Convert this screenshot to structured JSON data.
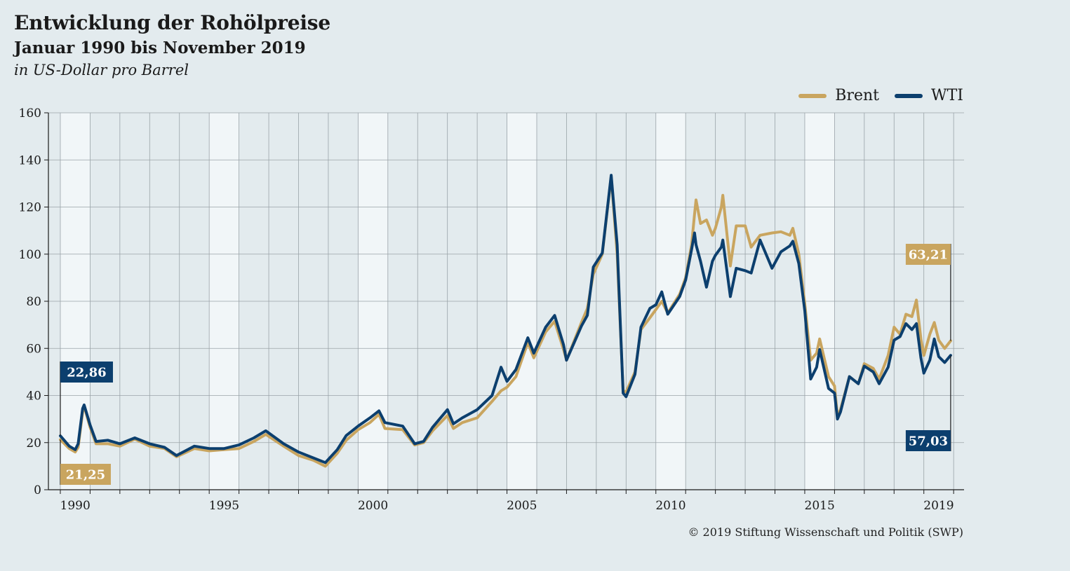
{
  "chart_data": {
    "type": "line",
    "title": "Entwicklung der Rohölpreise",
    "subtitle": "Januar 1990 bis November 2019",
    "unit": "in US-Dollar pro Barrel",
    "source": "© 2019 Stiftung Wissenschaft und Politik (SWP)",
    "legend_position": "top-right",
    "grid": true,
    "ylim": [
      0,
      160
    ],
    "yticks": [
      0,
      20,
      40,
      60,
      80,
      100,
      120,
      140,
      160
    ],
    "xlim": [
      1990.0,
      2019.9
    ],
    "xticks": [
      1990,
      1995,
      2000,
      2005,
      2010,
      2015,
      2019
    ],
    "series": [
      {
        "name": "Brent",
        "color": "#c9a55f",
        "points": [
          [
            1990.0,
            21.25
          ],
          [
            1990.3,
            17.5
          ],
          [
            1990.5,
            16.0
          ],
          [
            1990.6,
            18.0
          ],
          [
            1990.75,
            33.0
          ],
          [
            1990.8,
            35.5
          ],
          [
            1991.0,
            26.5
          ],
          [
            1991.2,
            19.5
          ],
          [
            1991.6,
            19.5
          ],
          [
            1992.0,
            18.5
          ],
          [
            1992.5,
            21.5
          ],
          [
            1993.0,
            18.5
          ],
          [
            1993.5,
            17.5
          ],
          [
            1993.9,
            14.0
          ],
          [
            1994.5,
            17.5
          ],
          [
            1995.0,
            16.5
          ],
          [
            1995.5,
            17.0
          ],
          [
            1996.0,
            17.5
          ],
          [
            1996.5,
            20.5
          ],
          [
            1996.9,
            23.5
          ],
          [
            1997.5,
            18.5
          ],
          [
            1998.0,
            14.5
          ],
          [
            1998.5,
            12.5
          ],
          [
            1998.9,
            10.0
          ],
          [
            1999.3,
            15.5
          ],
          [
            1999.6,
            21.0
          ],
          [
            2000.0,
            25.5
          ],
          [
            2000.4,
            28.5
          ],
          [
            2000.7,
            32.0
          ],
          [
            2000.9,
            26.0
          ],
          [
            2001.5,
            25.5
          ],
          [
            2001.9,
            19.0
          ],
          [
            2002.2,
            20.0
          ],
          [
            2002.5,
            25.0
          ],
          [
            2003.0,
            31.5
          ],
          [
            2003.2,
            26.0
          ],
          [
            2003.5,
            28.5
          ],
          [
            2004.0,
            30.5
          ],
          [
            2004.5,
            37.5
          ],
          [
            2004.8,
            42.0
          ],
          [
            2005.0,
            43.5
          ],
          [
            2005.3,
            48.0
          ],
          [
            2005.7,
            62.5
          ],
          [
            2005.9,
            56.0
          ],
          [
            2006.3,
            67.0
          ],
          [
            2006.6,
            71.5
          ],
          [
            2006.9,
            59.5
          ],
          [
            2007.0,
            55.0
          ],
          [
            2007.5,
            71.0
          ],
          [
            2007.7,
            77.0
          ],
          [
            2007.9,
            91.5
          ],
          [
            2008.2,
            100.0
          ],
          [
            2008.5,
            133.0
          ],
          [
            2008.7,
            100.0
          ],
          [
            2008.9,
            42.0
          ],
          [
            2009.0,
            41.5
          ],
          [
            2009.3,
            50.0
          ],
          [
            2009.5,
            68.0
          ],
          [
            2009.8,
            73.0
          ],
          [
            2010.0,
            76.5
          ],
          [
            2010.2,
            80.0
          ],
          [
            2010.4,
            75.0
          ],
          [
            2010.8,
            83.0
          ],
          [
            2011.0,
            90.0
          ],
          [
            2011.2,
            104.0
          ],
          [
            2011.3,
            117.0
          ],
          [
            2011.35,
            123.0
          ],
          [
            2011.5,
            113.0
          ],
          [
            2011.7,
            114.5
          ],
          [
            2011.9,
            108.0
          ],
          [
            2012.0,
            111.0
          ],
          [
            2012.2,
            120.0
          ],
          [
            2012.25,
            125.0
          ],
          [
            2012.5,
            95.0
          ],
          [
            2012.7,
            112.0
          ],
          [
            2013.0,
            112.0
          ],
          [
            2013.2,
            103.0
          ],
          [
            2013.5,
            108.0
          ],
          [
            2013.9,
            109.0
          ],
          [
            2014.2,
            109.5
          ],
          [
            2014.5,
            108.0
          ],
          [
            2014.6,
            111.0
          ],
          [
            2014.8,
            100.0
          ],
          [
            2015.0,
            79.0
          ],
          [
            2015.2,
            55.0
          ],
          [
            2015.4,
            58.0
          ],
          [
            2015.5,
            64.0
          ],
          [
            2015.8,
            48.0
          ],
          [
            2016.0,
            44.0
          ],
          [
            2016.1,
            31.0
          ],
          [
            2016.2,
            34.0
          ],
          [
            2016.5,
            48.0
          ],
          [
            2016.8,
            45.0
          ],
          [
            2017.0,
            53.5
          ],
          [
            2017.3,
            51.5
          ],
          [
            2017.5,
            47.0
          ],
          [
            2017.8,
            57.0
          ],
          [
            2018.0,
            69.0
          ],
          [
            2018.2,
            66.0
          ],
          [
            2018.4,
            74.5
          ],
          [
            2018.6,
            73.5
          ],
          [
            2018.75,
            80.5
          ],
          [
            2018.9,
            64.0
          ],
          [
            2019.0,
            57.0
          ],
          [
            2019.2,
            66.0
          ],
          [
            2019.35,
            71.0
          ],
          [
            2019.5,
            63.5
          ],
          [
            2019.7,
            60.0
          ],
          [
            2019.9,
            63.21
          ]
        ],
        "start_label": "21,25",
        "end_label": "63,21"
      },
      {
        "name": "WTI",
        "color": "#0c3f6e",
        "points": [
          [
            1990.0,
            22.86
          ],
          [
            1990.3,
            18.5
          ],
          [
            1990.5,
            17.0
          ],
          [
            1990.6,
            19.5
          ],
          [
            1990.75,
            34.5
          ],
          [
            1990.8,
            36.0
          ],
          [
            1991.0,
            27.5
          ],
          [
            1991.2,
            20.5
          ],
          [
            1991.6,
            21.0
          ],
          [
            1992.0,
            19.5
          ],
          [
            1992.5,
            22.0
          ],
          [
            1993.0,
            19.5
          ],
          [
            1993.5,
            18.0
          ],
          [
            1993.9,
            14.5
          ],
          [
            1994.5,
            18.5
          ],
          [
            1995.0,
            17.5
          ],
          [
            1995.5,
            17.5
          ],
          [
            1996.0,
            19.0
          ],
          [
            1996.5,
            22.0
          ],
          [
            1996.9,
            25.0
          ],
          [
            1997.5,
            19.5
          ],
          [
            1998.0,
            16.0
          ],
          [
            1998.5,
            13.5
          ],
          [
            1998.9,
            11.5
          ],
          [
            1999.3,
            17.0
          ],
          [
            1999.6,
            23.0
          ],
          [
            2000.0,
            27.0
          ],
          [
            2000.4,
            30.5
          ],
          [
            2000.7,
            33.5
          ],
          [
            2000.9,
            28.5
          ],
          [
            2001.5,
            27.0
          ],
          [
            2001.9,
            19.5
          ],
          [
            2002.2,
            20.5
          ],
          [
            2002.5,
            26.5
          ],
          [
            2003.0,
            34.0
          ],
          [
            2003.2,
            28.0
          ],
          [
            2003.5,
            30.5
          ],
          [
            2004.0,
            34.0
          ],
          [
            2004.5,
            40.0
          ],
          [
            2004.8,
            52.0
          ],
          [
            2005.0,
            46.0
          ],
          [
            2005.3,
            51.0
          ],
          [
            2005.7,
            64.5
          ],
          [
            2005.9,
            58.0
          ],
          [
            2006.3,
            69.0
          ],
          [
            2006.6,
            74.0
          ],
          [
            2006.9,
            61.5
          ],
          [
            2007.0,
            55.0
          ],
          [
            2007.5,
            69.5
          ],
          [
            2007.7,
            74.0
          ],
          [
            2007.9,
            94.5
          ],
          [
            2008.2,
            100.5
          ],
          [
            2008.5,
            133.5
          ],
          [
            2008.7,
            104.0
          ],
          [
            2008.9,
            41.0
          ],
          [
            2009.0,
            39.5
          ],
          [
            2009.3,
            49.0
          ],
          [
            2009.5,
            69.0
          ],
          [
            2009.8,
            77.0
          ],
          [
            2010.0,
            78.5
          ],
          [
            2010.2,
            84.0
          ],
          [
            2010.4,
            74.5
          ],
          [
            2010.8,
            82.0
          ],
          [
            2011.0,
            89.0
          ],
          [
            2011.2,
            102.0
          ],
          [
            2011.3,
            109.0
          ],
          [
            2011.35,
            104.0
          ],
          [
            2011.5,
            97.0
          ],
          [
            2011.7,
            86.0
          ],
          [
            2011.9,
            97.0
          ],
          [
            2012.0,
            99.5
          ],
          [
            2012.2,
            103.0
          ],
          [
            2012.25,
            106.0
          ],
          [
            2012.5,
            82.0
          ],
          [
            2012.7,
            94.0
          ],
          [
            2013.0,
            93.0
          ],
          [
            2013.2,
            92.0
          ],
          [
            2013.5,
            106.0
          ],
          [
            2013.9,
            94.0
          ],
          [
            2014.2,
            101.0
          ],
          [
            2014.5,
            103.5
          ],
          [
            2014.6,
            105.5
          ],
          [
            2014.8,
            96.0
          ],
          [
            2015.0,
            76.0
          ],
          [
            2015.2,
            47.0
          ],
          [
            2015.4,
            52.0
          ],
          [
            2015.5,
            59.5
          ],
          [
            2015.8,
            43.0
          ],
          [
            2016.0,
            41.0
          ],
          [
            2016.1,
            30.0
          ],
          [
            2016.2,
            33.0
          ],
          [
            2016.5,
            48.0
          ],
          [
            2016.8,
            45.0
          ],
          [
            2017.0,
            52.5
          ],
          [
            2017.3,
            50.0
          ],
          [
            2017.5,
            45.0
          ],
          [
            2017.8,
            52.0
          ],
          [
            2018.0,
            63.5
          ],
          [
            2018.2,
            65.0
          ],
          [
            2018.4,
            70.5
          ],
          [
            2018.6,
            68.0
          ],
          [
            2018.75,
            70.5
          ],
          [
            2018.9,
            56.0
          ],
          [
            2019.0,
            49.5
          ],
          [
            2019.2,
            55.0
          ],
          [
            2019.35,
            64.0
          ],
          [
            2019.5,
            56.5
          ],
          [
            2019.7,
            54.0
          ],
          [
            2019.9,
            57.03
          ]
        ],
        "start_label": "22,86",
        "end_label": "57,03"
      }
    ]
  }
}
